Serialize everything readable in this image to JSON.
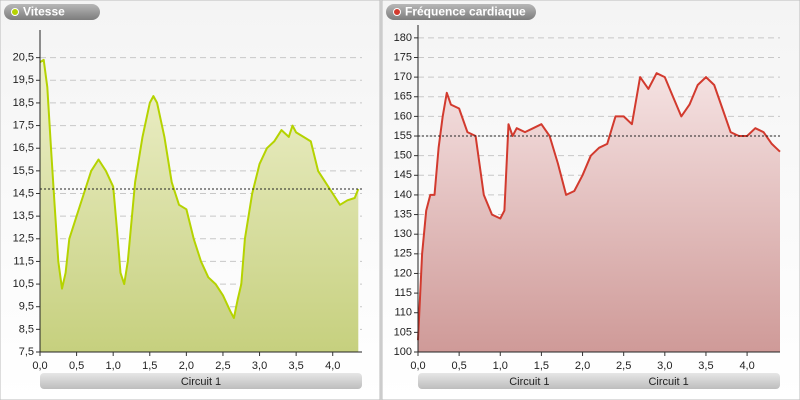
{
  "chart_data": [
    {
      "type": "area",
      "title": "Vitesse",
      "xlabels": [
        "Circuit 1"
      ],
      "color": "#b5d300",
      "fill": [
        "#eef0cc",
        "#c6d07e"
      ],
      "x": [
        0,
        0.05,
        0.1,
        0.15,
        0.2,
        0.25,
        0.3,
        0.35,
        0.4,
        0.5,
        0.6,
        0.7,
        0.8,
        0.9,
        1.0,
        1.05,
        1.1,
        1.15,
        1.2,
        1.3,
        1.4,
        1.5,
        1.55,
        1.6,
        1.7,
        1.8,
        1.9,
        2.0,
        2.1,
        2.2,
        2.3,
        2.4,
        2.5,
        2.6,
        2.65,
        2.7,
        2.75,
        2.8,
        2.9,
        3.0,
        3.1,
        3.2,
        3.3,
        3.4,
        3.45,
        3.5,
        3.6,
        3.7,
        3.8,
        3.9,
        4.0,
        4.1,
        4.2,
        4.3,
        4.35
      ],
      "values": [
        20.3,
        20.4,
        19.2,
        16.5,
        14,
        11.5,
        10.3,
        11,
        12.5,
        13.5,
        14.5,
        15.5,
        16,
        15.5,
        14.8,
        13,
        11,
        10.5,
        11.5,
        15,
        17,
        18.5,
        18.8,
        18.5,
        17,
        15,
        14,
        13.8,
        12.5,
        11.5,
        10.8,
        10.5,
        10,
        9.3,
        9,
        9.8,
        10.5,
        12.5,
        14.5,
        15.8,
        16.5,
        16.8,
        17.3,
        17,
        17.5,
        17.2,
        17,
        16.8,
        15.5,
        15,
        14.5,
        14,
        14.2,
        14.3,
        14.7
      ],
      "average": 14.7,
      "xlim": [
        0,
        4.4
      ],
      "ylim": [
        7.5,
        21.5
      ],
      "xticks": [
        {
          "value": 0,
          "label": "0,0"
        },
        {
          "value": 0.5,
          "label": "0,5"
        },
        {
          "value": 1,
          "label": "1,0"
        },
        {
          "value": 1.5,
          "label": "1,5"
        },
        {
          "value": 2,
          "label": "2,0"
        },
        {
          "value": 2.5,
          "label": "2,5"
        },
        {
          "value": 3,
          "label": "3,0"
        },
        {
          "value": 3.5,
          "label": "3,5"
        },
        {
          "value": 4,
          "label": "4,0"
        }
      ],
      "yticks": [
        {
          "value": 7.5,
          "label": "7,5"
        },
        {
          "value": 8.5,
          "label": "8,5"
        },
        {
          "value": 9.5,
          "label": "9,5"
        },
        {
          "value": 10.5,
          "label": "10,5"
        },
        {
          "value": 11.5,
          "label": "11,5"
        },
        {
          "value": 12.5,
          "label": "12,5"
        },
        {
          "value": 13.5,
          "label": "13,5"
        },
        {
          "value": 14.5,
          "label": "14,5"
        },
        {
          "value": 15.5,
          "label": "15,5"
        },
        {
          "value": 16.5,
          "label": "16,5"
        },
        {
          "value": 17.5,
          "label": "17,5"
        },
        {
          "value": 18.5,
          "label": "18,5"
        },
        {
          "value": 19.5,
          "label": "19,5"
        },
        {
          "value": 20.5,
          "label": "20,5"
        }
      ],
      "grid": true
    },
    {
      "type": "area",
      "title": "Fréquence cardiaque",
      "xlabels": [
        "Circuit 1",
        "Circuit 1"
      ],
      "color": "#d23a2e",
      "fill": [
        "#f5e2e2",
        "#cf9a98"
      ],
      "x": [
        0,
        0.05,
        0.1,
        0.15,
        0.2,
        0.25,
        0.3,
        0.35,
        0.4,
        0.5,
        0.6,
        0.7,
        0.8,
        0.9,
        1.0,
        1.05,
        1.1,
        1.15,
        1.2,
        1.3,
        1.4,
        1.5,
        1.6,
        1.7,
        1.8,
        1.9,
        2.0,
        2.1,
        2.2,
        2.3,
        2.4,
        2.5,
        2.6,
        2.7,
        2.8,
        2.9,
        3.0,
        3.1,
        3.2,
        3.3,
        3.4,
        3.5,
        3.6,
        3.7,
        3.8,
        3.9,
        4.0,
        4.1,
        4.2,
        4.3,
        4.35,
        4.4
      ],
      "values": [
        103,
        125,
        136,
        140,
        140,
        152,
        160,
        166,
        163,
        162,
        156,
        155,
        140,
        135,
        134,
        136,
        158,
        155,
        157,
        156,
        157,
        158,
        155,
        148,
        140,
        141,
        145,
        150,
        152,
        153,
        160,
        160,
        158,
        170,
        167,
        171,
        170,
        165,
        160,
        163,
        168,
        170,
        168,
        162,
        156,
        155,
        155,
        157,
        156,
        153,
        152,
        151
      ],
      "average": 155,
      "xlim": [
        0,
        4.4
      ],
      "ylim": [
        100,
        182
      ],
      "xticks": [
        {
          "value": 0,
          "label": "0,0"
        },
        {
          "value": 0.5,
          "label": "0,5"
        },
        {
          "value": 1,
          "label": "1,0"
        },
        {
          "value": 1.5,
          "label": "1,5"
        },
        {
          "value": 2,
          "label": "2,0"
        },
        {
          "value": 2.5,
          "label": "2,5"
        },
        {
          "value": 3,
          "label": "3,0"
        },
        {
          "value": 3.5,
          "label": "3,5"
        },
        {
          "value": 4,
          "label": "4,0"
        }
      ],
      "yticks": [
        100,
        105,
        110,
        115,
        120,
        125,
        130,
        135,
        140,
        145,
        150,
        155,
        160,
        165,
        170,
        175,
        180
      ],
      "grid": true
    }
  ]
}
